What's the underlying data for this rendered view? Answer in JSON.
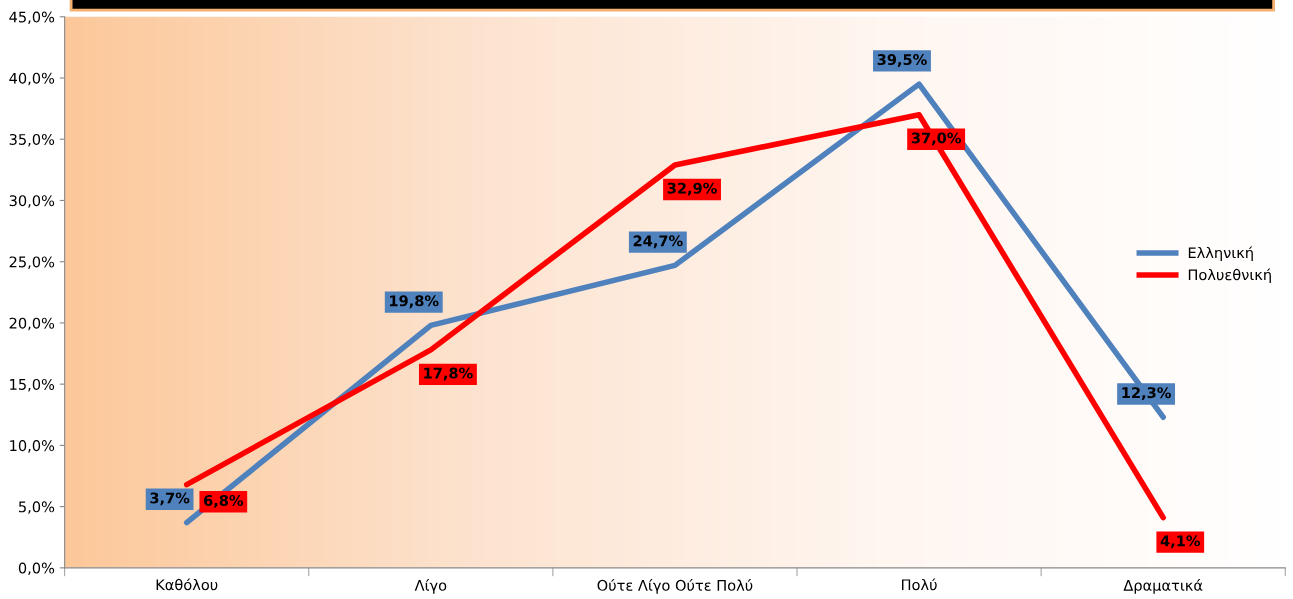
{
  "chart_data": {
    "type": "line",
    "categories": [
      "Καθόλου",
      "Λίγο",
      "Ούτε Λίγο Ούτε Πολύ",
      "Πολύ",
      "Δραματικά"
    ],
    "series": [
      {
        "name": "Ελληνική",
        "color": "#4f81bd",
        "values": [
          3.7,
          19.8,
          24.7,
          39.5,
          12.3
        ],
        "value_labels": [
          "3,7%",
          "19,8%",
          "24,7%",
          "39,5%",
          "12,3%"
        ]
      },
      {
        "name": "Πολυεθνική",
        "color": "#ff0000",
        "values": [
          6.8,
          17.8,
          32.9,
          37.0,
          4.1
        ],
        "value_labels": [
          "6,8%",
          "17,8%",
          "32,9%",
          "37,0%",
          "4,1%"
        ]
      }
    ],
    "ylim": [
      0,
      45
    ],
    "yticks": [
      {
        "value": 0,
        "label": "0,0%"
      },
      {
        "value": 5,
        "label": "5,0%"
      },
      {
        "value": 10,
        "label": "10,0%"
      },
      {
        "value": 15,
        "label": "15,0%"
      },
      {
        "value": 20,
        "label": "20,0%"
      },
      {
        "value": 25,
        "label": "25,0%"
      },
      {
        "value": 30,
        "label": "30,0%"
      },
      {
        "value": 35,
        "label": "35,0%"
      },
      {
        "value": 40,
        "label": "40,0%"
      },
      {
        "value": 45,
        "label": "45,0%"
      }
    ],
    "grid": false,
    "legend": "right",
    "marker": "none",
    "line_style": "solid"
  }
}
